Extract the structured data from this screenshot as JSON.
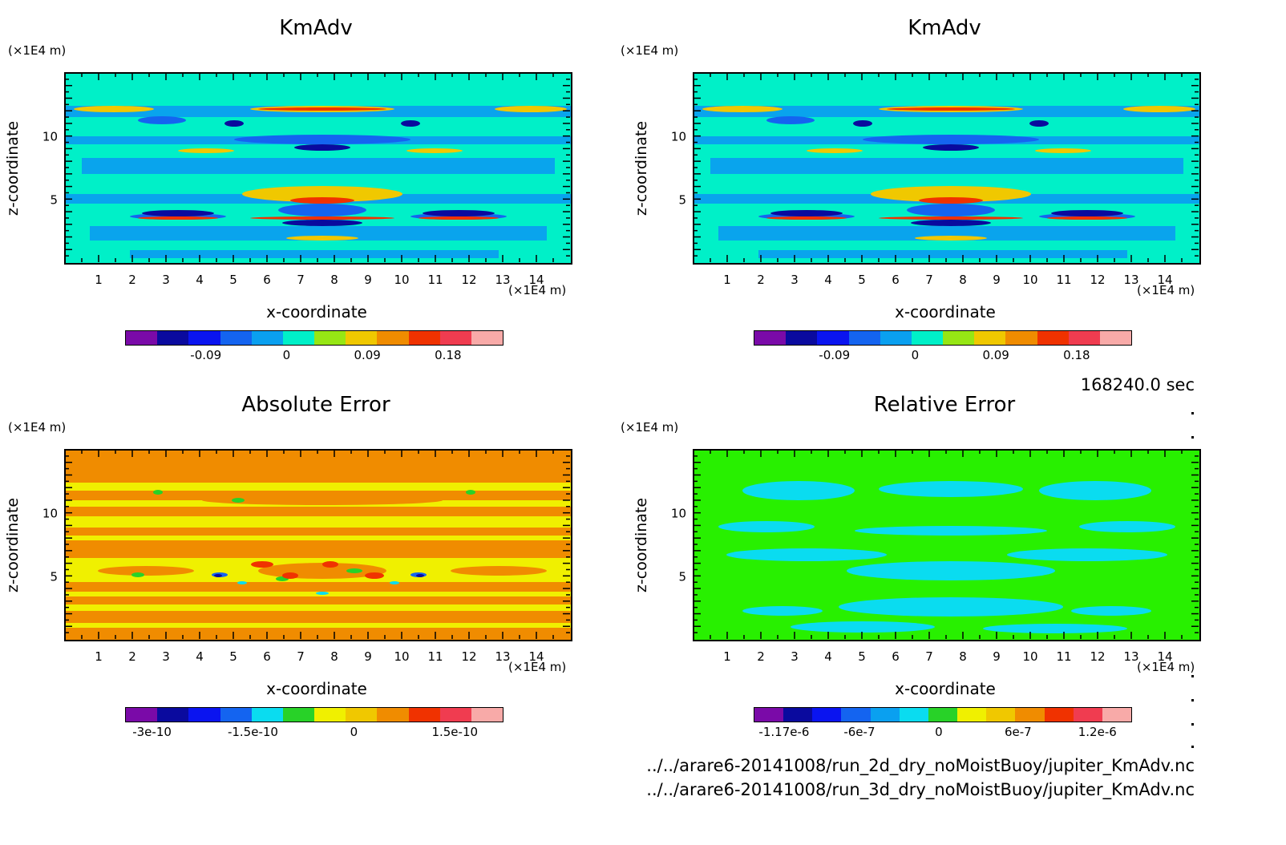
{
  "time_label": "168240.0 sec",
  "files": [
    "../../arare6-20141008/run_2d_dry_noMoistBuoy/jupiter_KmAdv.nc",
    "../../arare6-20141008/run_3d_dry_noMoistBuoy/jupiter_KmAdv.nc"
  ],
  "chart_data": [
    {
      "type": "heatmap",
      "title": "KmAdv",
      "xlabel": "x-coordinate",
      "ylabel": "z-coordinate",
      "x_unit": "(×1E4 m)",
      "y_unit": "(×1E4 m)",
      "xlim": [
        0,
        15
      ],
      "ylim": [
        0,
        15
      ],
      "x_ticks": [
        "1",
        "2",
        "3",
        "4",
        "5",
        "6",
        "7",
        "8",
        "9",
        "10",
        "11",
        "12",
        "13",
        "14"
      ],
      "y_ticks": [
        "5",
        "10"
      ],
      "colorbar": {
        "colors": [
          "#7a0aa8",
          "#0a0a9e",
          "#0a14f0",
          "#1464f0",
          "#0aa0f0",
          "#00f0c8",
          "#96e614",
          "#f0c800",
          "#f08c00",
          "#f03200",
          "#f03c50",
          "#f8aaa8"
        ],
        "labels": [
          "-0.09",
          "0",
          "0.09",
          "0.18"
        ],
        "label_values": [
          -0.09,
          0,
          0.09,
          0.18
        ],
        "range": [
          -0.18,
          0.24
        ]
      },
      "background": "#00f0c8"
    },
    {
      "type": "heatmap",
      "title": "KmAdv",
      "xlabel": "x-coordinate",
      "ylabel": "z-coordinate",
      "x_unit": "(×1E4 m)",
      "y_unit": "(×1E4 m)",
      "xlim": [
        0,
        15
      ],
      "ylim": [
        0,
        15
      ],
      "x_ticks": [
        "1",
        "2",
        "3",
        "4",
        "5",
        "6",
        "7",
        "8",
        "9",
        "10",
        "11",
        "12",
        "13",
        "14"
      ],
      "y_ticks": [
        "5",
        "10"
      ],
      "colorbar": {
        "colors": [
          "#7a0aa8",
          "#0a0a9e",
          "#0a14f0",
          "#1464f0",
          "#0aa0f0",
          "#00f0c8",
          "#96e614",
          "#f0c800",
          "#f08c00",
          "#f03200",
          "#f03c50",
          "#f8aaa8"
        ],
        "labels": [
          "-0.09",
          "0",
          "0.09",
          "0.18"
        ],
        "label_values": [
          -0.09,
          0,
          0.09,
          0.18
        ],
        "range": [
          -0.18,
          0.24
        ]
      },
      "background": "#00f0c8"
    },
    {
      "type": "heatmap",
      "title": "Absolute Error",
      "xlabel": "x-coordinate",
      "ylabel": "z-coordinate",
      "x_unit": "(×1E4 m)",
      "y_unit": "(×1E4 m)",
      "xlim": [
        0,
        15
      ],
      "ylim": [
        0,
        15
      ],
      "x_ticks": [
        "1",
        "2",
        "3",
        "4",
        "5",
        "6",
        "7",
        "8",
        "9",
        "10",
        "11",
        "12",
        "13",
        "14"
      ],
      "y_ticks": [
        "5",
        "10"
      ],
      "colorbar": {
        "colors": [
          "#7a0aa8",
          "#0a0a9e",
          "#0a14f0",
          "#1464f0",
          "#0adcf0",
          "#28d228",
          "#f0f000",
          "#f0c800",
          "#f08c00",
          "#f03200",
          "#f03c50",
          "#f8aaa8"
        ],
        "labels": [
          "-3e-10",
          "-1.5e-10",
          "0",
          "1.5e-10"
        ],
        "label_values": [
          -3e-10,
          -1.5e-10,
          0,
          1.5e-10
        ],
        "range": [
          -3.4e-10,
          2.2e-10
        ]
      },
      "background": "#f08c00"
    },
    {
      "type": "heatmap",
      "title": "Relative Error",
      "xlabel": "x-coordinate",
      "ylabel": "z-coordinate",
      "x_unit": "(×1E4 m)",
      "y_unit": "(×1E4 m)",
      "xlim": [
        0,
        15
      ],
      "ylim": [
        0,
        15
      ],
      "x_ticks": [
        "1",
        "2",
        "3",
        "4",
        "5",
        "6",
        "7",
        "8",
        "9",
        "10",
        "11",
        "12",
        "13",
        "14"
      ],
      "y_ticks": [
        "5",
        "10"
      ],
      "colorbar": {
        "colors": [
          "#7a0aa8",
          "#0a0a9e",
          "#0a14f0",
          "#1464f0",
          "#0aa0f0",
          "#0adcf0",
          "#28d228",
          "#f0f000",
          "#f0c800",
          "#f08c00",
          "#f03200",
          "#f03c50",
          "#f8aaa8"
        ],
        "labels": [
          "-1.17e-6",
          "-6e-7",
          "0",
          "6e-7",
          "1.2e-6"
        ],
        "label_values": [
          -1.17e-06,
          -6e-07,
          0,
          6e-07,
          1.2e-06
        ],
        "range": [
          -1.4e-06,
          1.45e-06
        ]
      },
      "background": "#28f000"
    }
  ]
}
